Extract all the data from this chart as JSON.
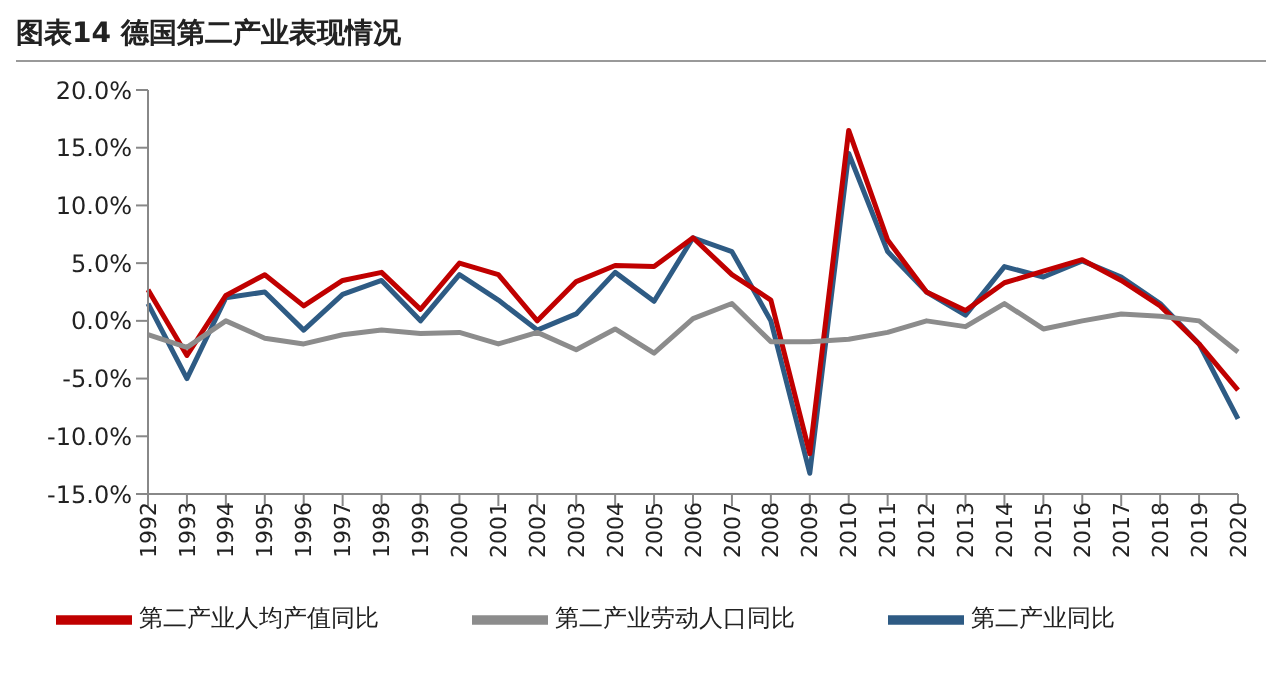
{
  "chart_data": {
    "type": "line",
    "title": "图表14   德国第二产业表现情况",
    "categories": [
      "1992",
      "1993",
      "1994",
      "1995",
      "1996",
      "1997",
      "1998",
      "1999",
      "2000",
      "2001",
      "2002",
      "2003",
      "2004",
      "2005",
      "2006",
      "2007",
      "2008",
      "2009",
      "2010",
      "2011",
      "2012",
      "2013",
      "2014",
      "2015",
      "2016",
      "2017",
      "2018",
      "2019",
      "2020"
    ],
    "series": [
      {
        "name": "第二产业同比",
        "color": "#2e5b84",
        "values": [
          1.5,
          -5.0,
          2.0,
          2.5,
          -0.8,
          2.3,
          3.5,
          0.0,
          4.0,
          1.8,
          -0.8,
          0.6,
          4.2,
          1.7,
          7.2,
          6.0,
          0.0,
          -13.2,
          14.5,
          6.0,
          2.5,
          0.5,
          4.7,
          3.8,
          5.2,
          3.8,
          1.5,
          -2.0,
          -8.5
        ]
      },
      {
        "name": "第二产业人均产值同比",
        "color": "#c00000",
        "values": [
          2.7,
          -3.0,
          2.2,
          4.0,
          1.3,
          3.5,
          4.2,
          1.0,
          5.0,
          4.0,
          0.0,
          3.4,
          4.8,
          4.7,
          7.2,
          4.0,
          1.8,
          -11.5,
          16.5,
          7.0,
          2.5,
          0.9,
          3.3,
          4.3,
          5.3,
          3.5,
          1.3,
          -2.0,
          -6.0
        ]
      },
      {
        "name": "第二产业劳动人口同比",
        "color": "#8c8c8c",
        "values": [
          -1.2,
          -2.3,
          0.0,
          -1.5,
          -2.0,
          -1.2,
          -0.8,
          -1.1,
          -1.0,
          -2.0,
          -1.0,
          -2.5,
          -0.7,
          -2.8,
          0.2,
          1.5,
          -1.8,
          -1.8,
          -1.6,
          -1.0,
          0.0,
          -0.5,
          1.5,
          -0.7,
          0.0,
          0.6,
          0.4,
          0.0,
          -2.7
        ]
      }
    ],
    "ylim": [
      -15,
      20
    ],
    "yticks": [
      {
        "value": -15,
        "label": "-15.0%"
      },
      {
        "value": -10,
        "label": "-10.0%"
      },
      {
        "value": -5,
        "label": "-5.0%"
      },
      {
        "value": 0,
        "label": "0.0%"
      },
      {
        "value": 5,
        "label": "5.0%"
      },
      {
        "value": 10,
        "label": "10.0%"
      },
      {
        "value": 15,
        "label": "15.0%"
      },
      {
        "value": 20,
        "label": "20.0%"
      }
    ],
    "grid": false,
    "legend": "bottom",
    "marker": "none",
    "line_style": "solid"
  }
}
